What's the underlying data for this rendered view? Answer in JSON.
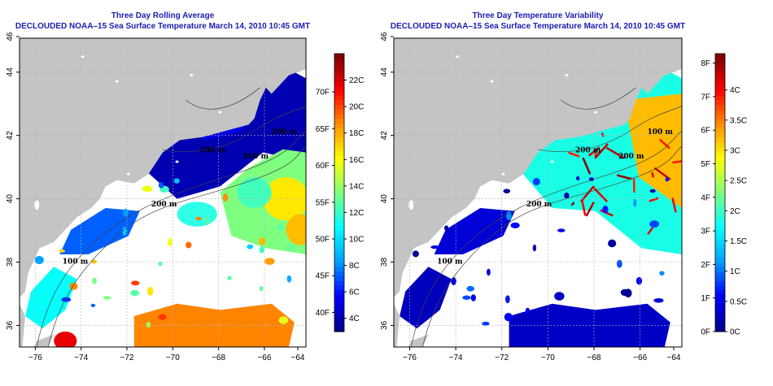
{
  "maps": [
    {
      "id": "avg",
      "title": "Three Day Rolling Average",
      "subtitle": "DECLOUDED NOAA–15 Sea Surface Temperature March 14, 2010 10:45 GMT",
      "x_ticks": [
        "−76",
        "−74",
        "−72",
        "−70",
        "−68",
        "−66",
        "−64"
      ],
      "y_ticks": [
        "36",
        "38",
        "40",
        "42",
        "44",
        "46"
      ],
      "isobath_labels": [
        "200 m",
        "100 m",
        "200 m",
        "200 m",
        "200 m"
      ],
      "colorbar": {
        "range": [
          3,
          24
        ],
        "celsius_labels": [
          "4C",
          "6C",
          "8C",
          "10C",
          "12C",
          "14C",
          "16C",
          "18C",
          "20C",
          "22C"
        ],
        "celsius_values": [
          4,
          6,
          8,
          10,
          12,
          14,
          16,
          18,
          20,
          22
        ],
        "fahrenheit_labels": [
          "40F",
          "45F",
          "50F",
          "55F",
          "60F",
          "65F",
          "70F"
        ],
        "fahrenheit_values": [
          40,
          45,
          50,
          55,
          60,
          65,
          70
        ]
      }
    },
    {
      "id": "var",
      "title": "Three Day Temperature Variability",
      "subtitle": "DECLOUDED NOAA–15 Sea Surface Temperature March 14, 2010 10:45 GMT",
      "x_ticks": [
        "−76",
        "−74",
        "−72",
        "−70",
        "−68",
        "−66",
        "−64"
      ],
      "y_ticks": [
        "36",
        "38",
        "40",
        "42",
        "44",
        "46"
      ],
      "isobath_labels": [
        "200 m",
        "100 m",
        "200 m",
        "100 m",
        "200 m"
      ],
      "colorbar": {
        "range": [
          0,
          4.6
        ],
        "celsius_labels": [
          "0C",
          "0.5C",
          "1C",
          "1.5C",
          "2C",
          "2.5C",
          "3C",
          "3.5C",
          "4C"
        ],
        "celsius_values": [
          0,
          0.5,
          1,
          1.5,
          2,
          2.5,
          3,
          3.5,
          4
        ],
        "fahrenheit_labels": [
          "0F",
          "1F",
          "2F",
          "3F",
          "4F",
          "5F",
          "6F",
          "7F",
          "8F"
        ],
        "fahrenheit_values": [
          0,
          1,
          2,
          3,
          4,
          5,
          6,
          7,
          8
        ]
      }
    }
  ],
  "colors": {
    "land": "#c4c4c4",
    "title": "#1c1cb4",
    "jet": [
      "#00008f",
      "#0000ff",
      "#00a0ff",
      "#00ffff",
      "#7fff7f",
      "#ffff00",
      "#ff9000",
      "#ff0000",
      "#800000"
    ]
  }
}
